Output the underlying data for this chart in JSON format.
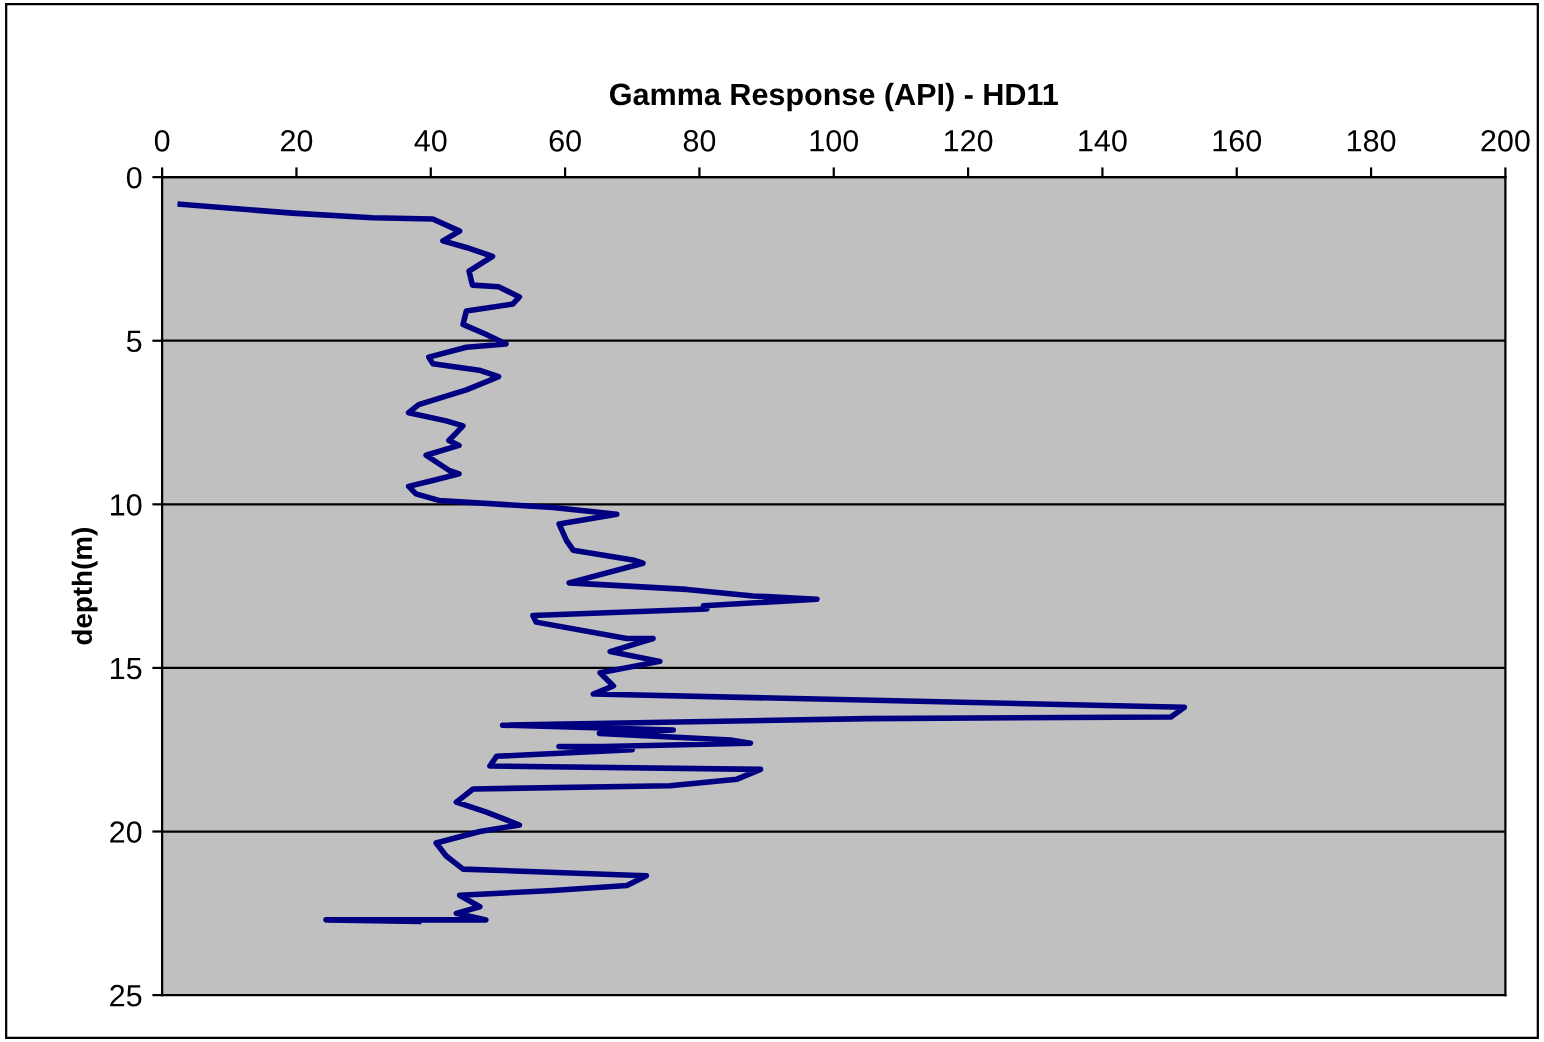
{
  "chart_data": {
    "type": "line",
    "title": "Gamma Response (API) - HD11",
    "ylabel": "depth(m)",
    "xlim": [
      0,
      200
    ],
    "xticks": [
      0,
      20,
      40,
      60,
      80,
      100,
      120,
      140,
      160,
      180,
      200
    ],
    "ylim": [
      25,
      0
    ],
    "yticks": [
      0,
      5,
      10,
      15,
      20,
      25
    ],
    "grid": "y",
    "legend": false,
    "marker": "none",
    "line_style": "solid",
    "series": [
      {
        "color": "#000080",
        "x": [
          2.7,
          19.4,
          31.3,
          40.3,
          44.3,
          41.8,
          45.3,
          49.2,
          45.7,
          46.2,
          50.1,
          53.2,
          52.2,
          45.3,
          44.8,
          48.2,
          51.2,
          45.3,
          39.7,
          40.3,
          47.2,
          50.1,
          45.3,
          38.2,
          36.7,
          42.3,
          44.8,
          42.7,
          44.2,
          39.3,
          42.7,
          44.2,
          40.3,
          36.7,
          37.8,
          41.2,
          58.2,
          67.7,
          59.1,
          60.2,
          61.2,
          70.1,
          71.6,
          60.6,
          78.1,
          88.0,
          97.5,
          80.6,
          81.1,
          55.2,
          55.7,
          69.2,
          73.1,
          66.7,
          74.1,
          65.2,
          67.2,
          64.2,
          152.2,
          150.2,
          105,
          50.7,
          76.1,
          65.1,
          84.6,
          87.6,
          65.7,
          59.1,
          70,
          49.8,
          48.8,
          89.1,
          85.6,
          75.6,
          46.3,
          43.8,
          48.2,
          53.2,
          47.3,
          40.8,
          42.3,
          44.8,
          72.1,
          69.2,
          58.2,
          44.3,
          47.3,
          43.8,
          48.2,
          24.4,
          38.2
        ],
        "values": [
          0.83,
          1.1,
          1.24,
          1.28,
          1.65,
          1.95,
          2.15,
          2.42,
          2.87,
          3.3,
          3.35,
          3.66,
          3.88,
          4.09,
          4.5,
          4.8,
          5.1,
          5.2,
          5.5,
          5.7,
          5.9,
          6.1,
          6.5,
          6.95,
          7.2,
          7.45,
          7.6,
          8.05,
          8.2,
          8.5,
          8.96,
          9.07,
          9.27,
          9.45,
          9.68,
          9.88,
          10.1,
          10.3,
          10.6,
          11.1,
          11.4,
          11.7,
          11.8,
          12.4,
          12.6,
          12.8,
          12.9,
          13.1,
          13.2,
          13.4,
          13.6,
          14.1,
          14.1,
          14.5,
          14.8,
          15.15,
          15.55,
          15.8,
          16.2,
          16.5,
          16.55,
          16.75,
          16.9,
          17.0,
          17.2,
          17.3,
          17.4,
          17.4,
          17.5,
          17.7,
          18.0,
          18.1,
          18.4,
          18.6,
          18.7,
          19.1,
          19.4,
          19.8,
          20.0,
          20.35,
          20.75,
          21.15,
          21.35,
          21.65,
          21.8,
          21.95,
          22.3,
          22.5,
          22.7,
          22.7,
          22.75
        ]
      }
    ]
  }
}
